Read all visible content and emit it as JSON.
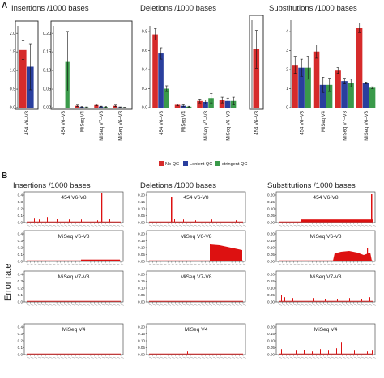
{
  "figure": {
    "panel_a": "A",
    "panel_b": "B",
    "error_rate_label": "Error rate"
  },
  "colors": {
    "no_qc": "#d62b2b",
    "lenient_qc": "#2a3f9e",
    "stringent_qc": "#3a9a4a",
    "line": "#dd1111"
  },
  "chart_data": [
    {
      "id": "A-insertions-454",
      "type": "bar",
      "title": "Insertions /1000 bases",
      "categories": [
        "454 V6–V8"
      ],
      "series": [
        {
          "name": "No QC",
          "values": [
            1.55
          ],
          "err": [
            0.25
          ]
        },
        {
          "name": "Lenient QC",
          "values": [
            1.1
          ],
          "err": [
            0.62
          ]
        }
      ],
      "ylim": [
        0,
        2.2
      ],
      "yticks": [
        "0.0",
        "0.5",
        "1.0",
        "1.5",
        "2.0"
      ]
    },
    {
      "id": "A-insertions-main",
      "type": "bar",
      "categories": [
        "454 V6–V8",
        "MiSeq V4",
        "MiSeq V7–V8",
        "MiSeq V6–V8"
      ],
      "series": [
        {
          "name": "No QC",
          "values": [
            0,
            0.005,
            0.007,
            0.005
          ],
          "err": [
            0,
            0.002,
            0.002,
            0.002
          ]
        },
        {
          "name": "Lenient QC",
          "values": [
            0,
            0.002,
            0.003,
            0.001
          ],
          "err": [
            0,
            0.001,
            0.001,
            0.001
          ]
        },
        {
          "name": "stringent QC",
          "values": [
            0.125,
            0.001,
            0.002,
            0.0005
          ],
          "err": [
            0.08,
            0.001,
            0.001,
            0.0005
          ]
        }
      ],
      "ylim": [
        0,
        0.22
      ],
      "yticks": [
        "0.00",
        "0.05",
        "0.10",
        "0.15",
        "0.20"
      ]
    },
    {
      "id": "A-deletions-main",
      "type": "bar",
      "title": "Deletions /1000 bases",
      "categories": [
        "454 V6–V8",
        "MiSeq V4",
        "MiSeq V7–V8",
        "MiSeq V6–V8"
      ],
      "series": [
        {
          "name": "No QC",
          "values": [
            0.77,
            0.03,
            0.07,
            0.08
          ],
          "err": [
            0.06,
            0.01,
            0.02,
            0.03
          ]
        },
        {
          "name": "Lenient QC",
          "values": [
            0.57,
            0.02,
            0.06,
            0.07
          ],
          "err": [
            0.06,
            0.01,
            0.02,
            0.03
          ]
        },
        {
          "name": "stringent QC",
          "values": [
            0.2,
            0.01,
            0.1,
            0.07
          ],
          "err": [
            0.03,
            0.005,
            0.05,
            0.04
          ]
        }
      ],
      "ylim": [
        0,
        0.86
      ],
      "yticks": [
        "0.0",
        "0.2",
        "0.4",
        "0.6",
        "0.8"
      ]
    },
    {
      "id": "A-deletions-inset",
      "type": "bar",
      "categories": [
        "454 V6–V8"
      ],
      "series": [
        {
          "name": "No QC",
          "values": [
            4.0
          ],
          "err": [
            1.3
          ]
        }
      ],
      "ylim": [
        0,
        6.0
      ]
    },
    {
      "id": "A-substitutions",
      "type": "bar",
      "title": "Substitutions /1000 bases",
      "categories": [
        "454 V6–V8",
        "MiSeq V4",
        "MiSeq V7–V8",
        "MiSeq V6–V8"
      ],
      "series": [
        {
          "name": "No QC",
          "values": [
            2.25,
            2.95,
            1.95,
            4.2
          ],
          "err": [
            0.45,
            0.35,
            0.15,
            0.25
          ]
        },
        {
          "name": "Lenient QC",
          "values": [
            2.1,
            1.2,
            1.4,
            1.3
          ],
          "err": [
            0.45,
            0.4,
            0.15,
            0.05
          ]
        },
        {
          "name": "stringent QC",
          "values": [
            2.1,
            1.2,
            1.3,
            1.05
          ],
          "err": [
            0.6,
            0.35,
            0.2,
            0.05
          ]
        }
      ],
      "ylim": [
        0,
        4.6
      ],
      "yticks": [
        "0",
        "1",
        "2",
        "3",
        "4"
      ]
    }
  ],
  "legend": [
    {
      "label": "No QC"
    },
    {
      "label": "Lenient QC"
    },
    {
      "label": "stringent QC"
    }
  ],
  "panel_b": {
    "columns": [
      {
        "title": "Insertions /1000 bases",
        "rows": [
          {
            "label": "454 V6-V8",
            "yticks": [
              "0.0",
              "0.1",
              "0.2",
              "0.3",
              "0.4"
            ]
          },
          {
            "label": "MiSeq V6-V8",
            "yticks": [
              "0.0",
              "0.1",
              "0.2",
              "0.3",
              "0.4"
            ]
          },
          {
            "label": "MiSeq V7-V8",
            "yticks": [
              "0.0",
              "0.1",
              "0.2",
              "0.3",
              "0.4"
            ]
          },
          {
            "label": "MiSeq V4",
            "yticks": [
              "0.0",
              "0.1",
              "0.2",
              "0.3",
              "0.4"
            ]
          }
        ]
      },
      {
        "title": "Deletions /1000 bases",
        "rows": [
          {
            "label": "454 V6-V8",
            "yticks": [
              "0.00",
              "0.05",
              "0.10",
              "0.15",
              "0.20"
            ]
          },
          {
            "label": "MiSeq V6-V8",
            "yticks": [
              "0.00",
              "0.05",
              "0.10",
              "0.15",
              "0.20"
            ]
          },
          {
            "label": "MiSeq V7-V8",
            "yticks": [
              "0.00",
              "0.05",
              "0.10",
              "0.15",
              "0.20"
            ]
          },
          {
            "label": "MiSeq V4",
            "yticks": [
              "0.00",
              "0.05",
              "0.10",
              "0.15",
              "0.20"
            ]
          }
        ]
      },
      {
        "title": "Substitutions /1000 bases",
        "rows": [
          {
            "label": "454 V6-V8",
            "yticks": [
              "0.00",
              "0.05",
              "0.10",
              "0.15",
              "0.20"
            ]
          },
          {
            "label": "MiSeq V6-V8",
            "yticks": [
              "0.00",
              "0.05",
              "0.10",
              "0.15",
              "0.20"
            ]
          },
          {
            "label": "MiSeq V7-V8",
            "yticks": [
              "0.00",
              "0.05",
              "0.10",
              "0.15",
              "0.20"
            ]
          },
          {
            "label": "MiSeq V4",
            "yticks": [
              "0.00",
              "0.05",
              "0.10",
              "0.15",
              "0.20"
            ]
          }
        ]
      }
    ]
  }
}
